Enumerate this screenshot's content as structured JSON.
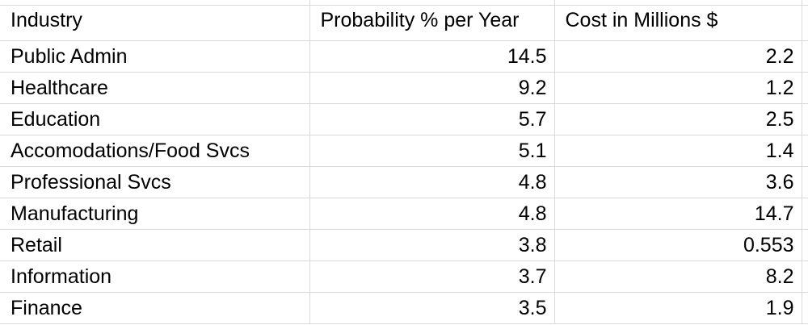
{
  "sheet": {
    "headers": {
      "industry": "Industry",
      "probability": "Probability % per Year",
      "cost": "Cost in Millions $"
    },
    "rows": [
      {
        "industry": "Public Admin",
        "probability": "14.5",
        "cost": "2.2"
      },
      {
        "industry": "Healthcare",
        "probability": "9.2",
        "cost": "1.2"
      },
      {
        "industry": "Education",
        "probability": "5.7",
        "cost": "2.5"
      },
      {
        "industry": "Accomodations/Food Svcs",
        "probability": "5.1",
        "cost": "1.4"
      },
      {
        "industry": "Professional Svcs",
        "probability": "4.8",
        "cost": "3.6"
      },
      {
        "industry": "Manufacturing",
        "probability": "4.8",
        "cost": "14.7"
      },
      {
        "industry": "Retail",
        "probability": "3.8",
        "cost": "0.553"
      },
      {
        "industry": "Information",
        "probability": "3.7",
        "cost": "8.2"
      },
      {
        "industry": "Finance",
        "probability": "3.5",
        "cost": "1.9"
      }
    ]
  },
  "colors": {
    "gridline": "#d9d9d9",
    "text": "#000000",
    "background": "#ffffff"
  }
}
